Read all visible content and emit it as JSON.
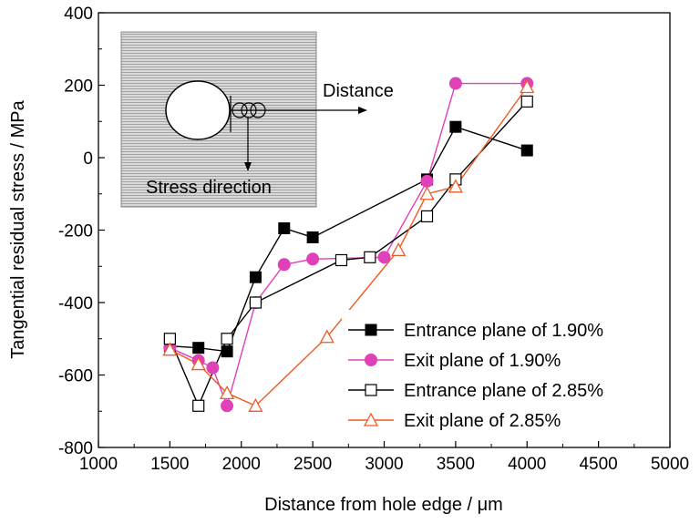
{
  "chart_data": {
    "type": "line",
    "xlabel": "Distance from hole edge / μm",
    "ylabel": "Tangential residual stress / MPa",
    "xlim": [
      1000,
      5000
    ],
    "ylim": [
      -800,
      400
    ],
    "xticks": [
      1000,
      1500,
      2000,
      2500,
      3000,
      3500,
      4000,
      4500,
      5000
    ],
    "yticks": [
      -800,
      -600,
      -400,
      -200,
      0,
      200,
      400
    ],
    "grid": false,
    "legend_position": "bottom-right",
    "series": [
      {
        "name": "Entrance plane of 1.90%",
        "color": "#000000",
        "marker": "square-filled",
        "x": [
          1500,
          1700,
          1900,
          2100,
          2300,
          2500,
          3300,
          3500,
          4000
        ],
        "y": [
          -520,
          -525,
          -535,
          -330,
          -195,
          -220,
          -60,
          85,
          20
        ]
      },
      {
        "name": "Exit plane of 1.90%",
        "color": "#e040b8",
        "marker": "circle-filled",
        "x": [
          1500,
          1700,
          1800,
          1900,
          2100,
          2300,
          2500,
          3000,
          3300,
          3500,
          4000
        ],
        "y": [
          -525,
          -560,
          -580,
          -685,
          -400,
          -295,
          -280,
          -275,
          -65,
          205,
          205
        ]
      },
      {
        "name": "Entrance plane of 2.85%",
        "color": "#000000",
        "marker": "square-open",
        "x": [
          1500,
          1700,
          1900,
          2100,
          2700,
          2900,
          3300,
          3500,
          4000
        ],
        "y": [
          -500,
          -685,
          -500,
          -400,
          -283,
          -275,
          -162,
          -60,
          155
        ]
      },
      {
        "name": "Exit plane of 2.85%",
        "color": "#f05a24",
        "marker": "triangle-open",
        "x": [
          1500,
          1700,
          1900,
          2100,
          2600,
          3100,
          3300,
          3500,
          4000
        ],
        "y": [
          -530,
          -570,
          -650,
          -685,
          -495,
          -255,
          -100,
          -80,
          195
        ]
      }
    ],
    "inset": {
      "distance_label": "Distance",
      "stress_label": "Stress direction"
    }
  }
}
